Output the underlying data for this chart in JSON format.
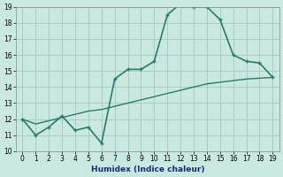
{
  "title": "",
  "xlabel": "Humidex (Indice chaleur)",
  "xlim": [
    -0.5,
    19.5
  ],
  "ylim": [
    10,
    19
  ],
  "xticks": [
    0,
    1,
    2,
    3,
    4,
    5,
    6,
    7,
    8,
    9,
    10,
    11,
    12,
    13,
    14,
    15,
    16,
    17,
    18,
    19
  ],
  "yticks": [
    10,
    11,
    12,
    13,
    14,
    15,
    16,
    17,
    18,
    19
  ],
  "line1_x": [
    0,
    1,
    2,
    3,
    4,
    5,
    6,
    7,
    8,
    9,
    10,
    11,
    12,
    13,
    14,
    15,
    16,
    17,
    18,
    19
  ],
  "line1_y": [
    12.0,
    11.0,
    11.5,
    12.2,
    11.3,
    11.5,
    10.5,
    14.5,
    15.1,
    15.1,
    15.6,
    18.5,
    19.2,
    19.0,
    19.0,
    18.2,
    16.0,
    15.6,
    15.5,
    14.6
  ],
  "line2_x": [
    0,
    1,
    2,
    3,
    4,
    5,
    6,
    7,
    8,
    9,
    10,
    11,
    12,
    13,
    14,
    15,
    16,
    17,
    18,
    19
  ],
  "line2_y": [
    12.0,
    11.7,
    11.9,
    12.1,
    12.3,
    12.5,
    12.6,
    12.8,
    13.0,
    13.2,
    13.4,
    13.6,
    13.8,
    14.0,
    14.2,
    14.3,
    14.4,
    14.5,
    14.55,
    14.6
  ],
  "line_color": "#2d7a6a",
  "bg_color": "#c8e8e0",
  "grid_color": "#a8cec8",
  "tick_fontsize": 5.5,
  "label_fontsize": 6.5
}
